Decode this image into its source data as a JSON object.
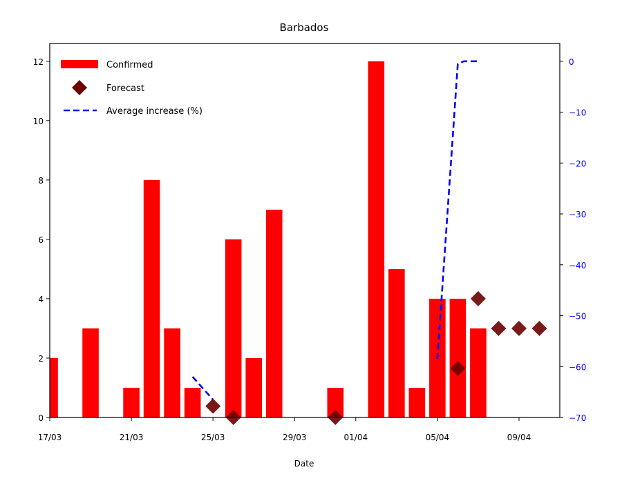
{
  "chart_data": {
    "type": "bar",
    "title": "Barbados",
    "xlabel": "Date",
    "ylabel": "",
    "y2label": "",
    "ylim": [
      0,
      12.6
    ],
    "y2lim": [
      -70,
      3.5
    ],
    "xlim": [
      0,
      25
    ],
    "yticks": [
      0,
      2,
      4,
      6,
      8,
      10,
      12
    ],
    "y2ticks": [
      0,
      -10,
      -20,
      -30,
      -40,
      -50,
      -60,
      -70
    ],
    "y2tick_labels": [
      "0",
      "−10",
      "−20",
      "−30",
      "−40",
      "−50",
      "−60",
      "−70"
    ],
    "xticks": [
      {
        "pos": 0,
        "label": "17/03"
      },
      {
        "pos": 4,
        "label": "21/03"
      },
      {
        "pos": 8,
        "label": "25/03"
      },
      {
        "pos": 12,
        "label": "29/03"
      },
      {
        "pos": 15,
        "label": "01/04"
      },
      {
        "pos": 19,
        "label": "05/04"
      },
      {
        "pos": 23,
        "label": "09/04"
      }
    ],
    "legend_position": "top-left",
    "colors": {
      "confirmed": "#ff0000",
      "forecast": "#6b0000",
      "average": "#0000ff",
      "right_axis": "#0000ff"
    },
    "series": [
      {
        "name": "Confirmed",
        "type": "bar",
        "x": [
          0,
          2,
          4,
          5,
          6,
          7,
          9,
          10,
          11,
          14,
          16,
          17,
          18,
          19,
          20,
          21
        ],
        "values": [
          2,
          3,
          1,
          8,
          3,
          1,
          6,
          2,
          7,
          1,
          12,
          5,
          1,
          4,
          4,
          3
        ]
      },
      {
        "name": "Forecast",
        "type": "scatter",
        "x": [
          8,
          9,
          14,
          20,
          21,
          22,
          23,
          24
        ],
        "values": [
          0.38,
          0.0,
          0.0,
          1.65,
          4.0,
          3.0,
          3.0,
          3.0
        ]
      },
      {
        "name": "Average increase (%)",
        "type": "line",
        "axis": "right",
        "segments": [
          {
            "x": [
              7,
              8
            ],
            "values": [
              -62.0,
              -66.5
            ]
          },
          {
            "x": [
              19,
              20,
              20.3,
              21
            ],
            "values": [
              -58.5,
              -0.5,
              0.0,
              0.0
            ]
          }
        ]
      }
    ]
  }
}
